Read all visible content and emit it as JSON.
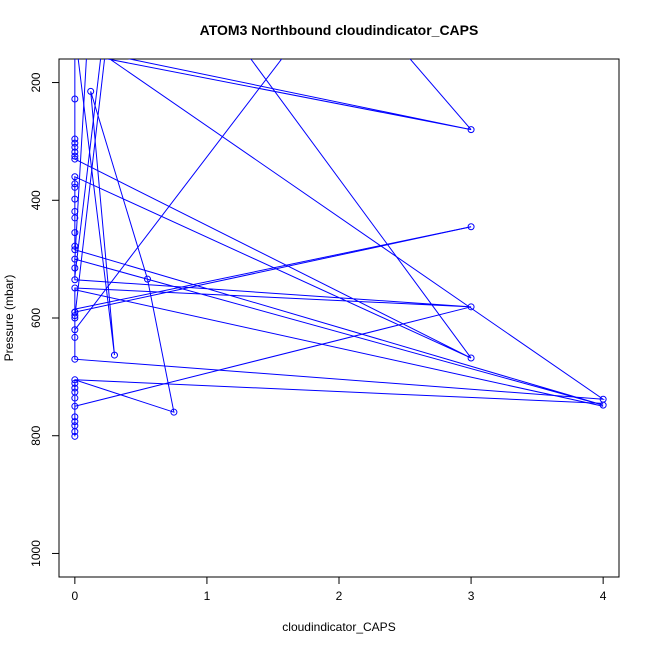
{
  "chart_data": {
    "type": "line",
    "title": "ATOM3 Northbound cloudindicator_CAPS",
    "xlabel": "cloudindicator_CAPS",
    "ylabel": "Pressure (mbar)",
    "xlim": [
      -0.12,
      4.12
    ],
    "ylim": [
      1040,
      160
    ],
    "y_reversed": true,
    "xticks": [
      0,
      1,
      2,
      3,
      4
    ],
    "yticks": [
      200,
      400,
      600,
      800,
      1000
    ],
    "grid": false,
    "line_color": "#0000ff",
    "series": [
      {
        "points": [
          [
            0,
            801
          ],
          [
            0,
            793
          ],
          [
            0,
            783
          ],
          [
            0,
            776
          ],
          [
            0,
            768
          ],
          [
            0,
            750
          ],
          [
            0,
            736
          ],
          [
            0,
            726
          ],
          [
            0,
            719
          ],
          [
            0,
            711
          ],
          [
            0,
            705
          ],
          [
            0.75,
            760
          ],
          [
            0.55,
            534
          ],
          [
            0.12,
            215
          ],
          [
            0.3,
            663
          ],
          [
            0.02,
            150
          ],
          [
            3,
            280
          ],
          [
            0.2,
            150
          ],
          [
            4,
            738
          ],
          [
            0,
            670
          ],
          [
            0,
            633
          ],
          [
            0,
            620
          ],
          [
            0,
            600
          ],
          [
            0,
            596
          ],
          [
            0,
            590
          ],
          [
            3,
            445
          ],
          [
            0,
            590
          ],
          [
            0,
            549
          ],
          [
            3,
            581
          ],
          [
            0,
            535
          ],
          [
            0,
            515
          ],
          [
            0,
            500
          ],
          [
            4,
            748
          ],
          [
            0,
            484
          ],
          [
            0,
            478
          ],
          [
            0,
            455
          ],
          [
            0,
            430
          ],
          [
            0,
            419
          ],
          [
            0,
            398
          ],
          [
            0,
            378
          ],
          [
            0,
            372
          ],
          [
            0,
            360
          ],
          [
            3,
            668
          ],
          [
            0,
            330
          ],
          [
            0,
            325
          ],
          [
            0,
            318
          ],
          [
            0,
            310
          ],
          [
            0,
            303
          ],
          [
            0,
            296
          ],
          [
            0,
            228
          ],
          [
            0,
            150
          ]
        ],
        "extra_segments": [
          [
            [
              0,
              620
            ],
            [
              1.6,
              150
            ]
          ],
          [
            [
              0,
              530
            ],
            [
              0.2,
              150
            ]
          ],
          [
            [
              0,
              500
            ],
            [
              0.09,
              150
            ]
          ],
          [
            [
              0,
              598
            ],
            [
              0.23,
              150
            ]
          ],
          [
            [
              0,
              552
            ],
            [
              4,
              750
            ]
          ],
          [
            [
              1.3,
              150
            ],
            [
              3,
              668
            ]
          ],
          [
            [
              2.5,
              150
            ],
            [
              3,
              280
            ]
          ],
          [
            [
              0,
              585
            ],
            [
              3,
              445
            ]
          ],
          [
            [
              0,
              750
            ],
            [
              3,
              581
            ]
          ],
          [
            [
              0,
              705
            ],
            [
              4,
              745
            ]
          ]
        ]
      }
    ]
  }
}
